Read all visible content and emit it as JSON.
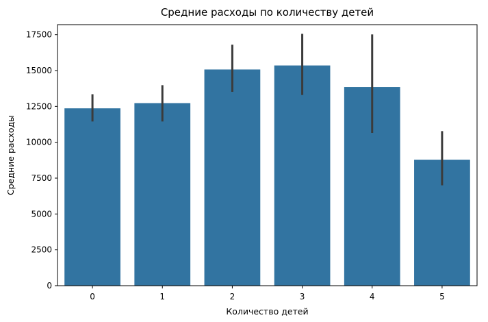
{
  "chart_data": {
    "type": "bar",
    "title": "Средние расходы по количеству детей",
    "xlabel": "Количество детей",
    "ylabel": "Средние расходы",
    "categories": [
      "0",
      "1",
      "2",
      "3",
      "4",
      "5"
    ],
    "values": [
      12366,
      12731,
      15074,
      15355,
      13851,
      8786
    ],
    "error_bars": [
      {
        "low": 11450,
        "high": 13350
      },
      {
        "low": 11450,
        "high": 13980
      },
      {
        "low": 13520,
        "high": 16800
      },
      {
        "low": 13300,
        "high": 17560
      },
      {
        "low": 10650,
        "high": 17520
      },
      {
        "low": 7000,
        "high": 10780
      }
    ],
    "ylim": [
      0,
      18200
    ],
    "yticks": [
      0,
      2500,
      5000,
      7500,
      10000,
      12500,
      15000,
      17500
    ],
    "grid": false,
    "legend": "none",
    "bar_color": "#3274a1",
    "error_color": "#3b3b3b"
  }
}
